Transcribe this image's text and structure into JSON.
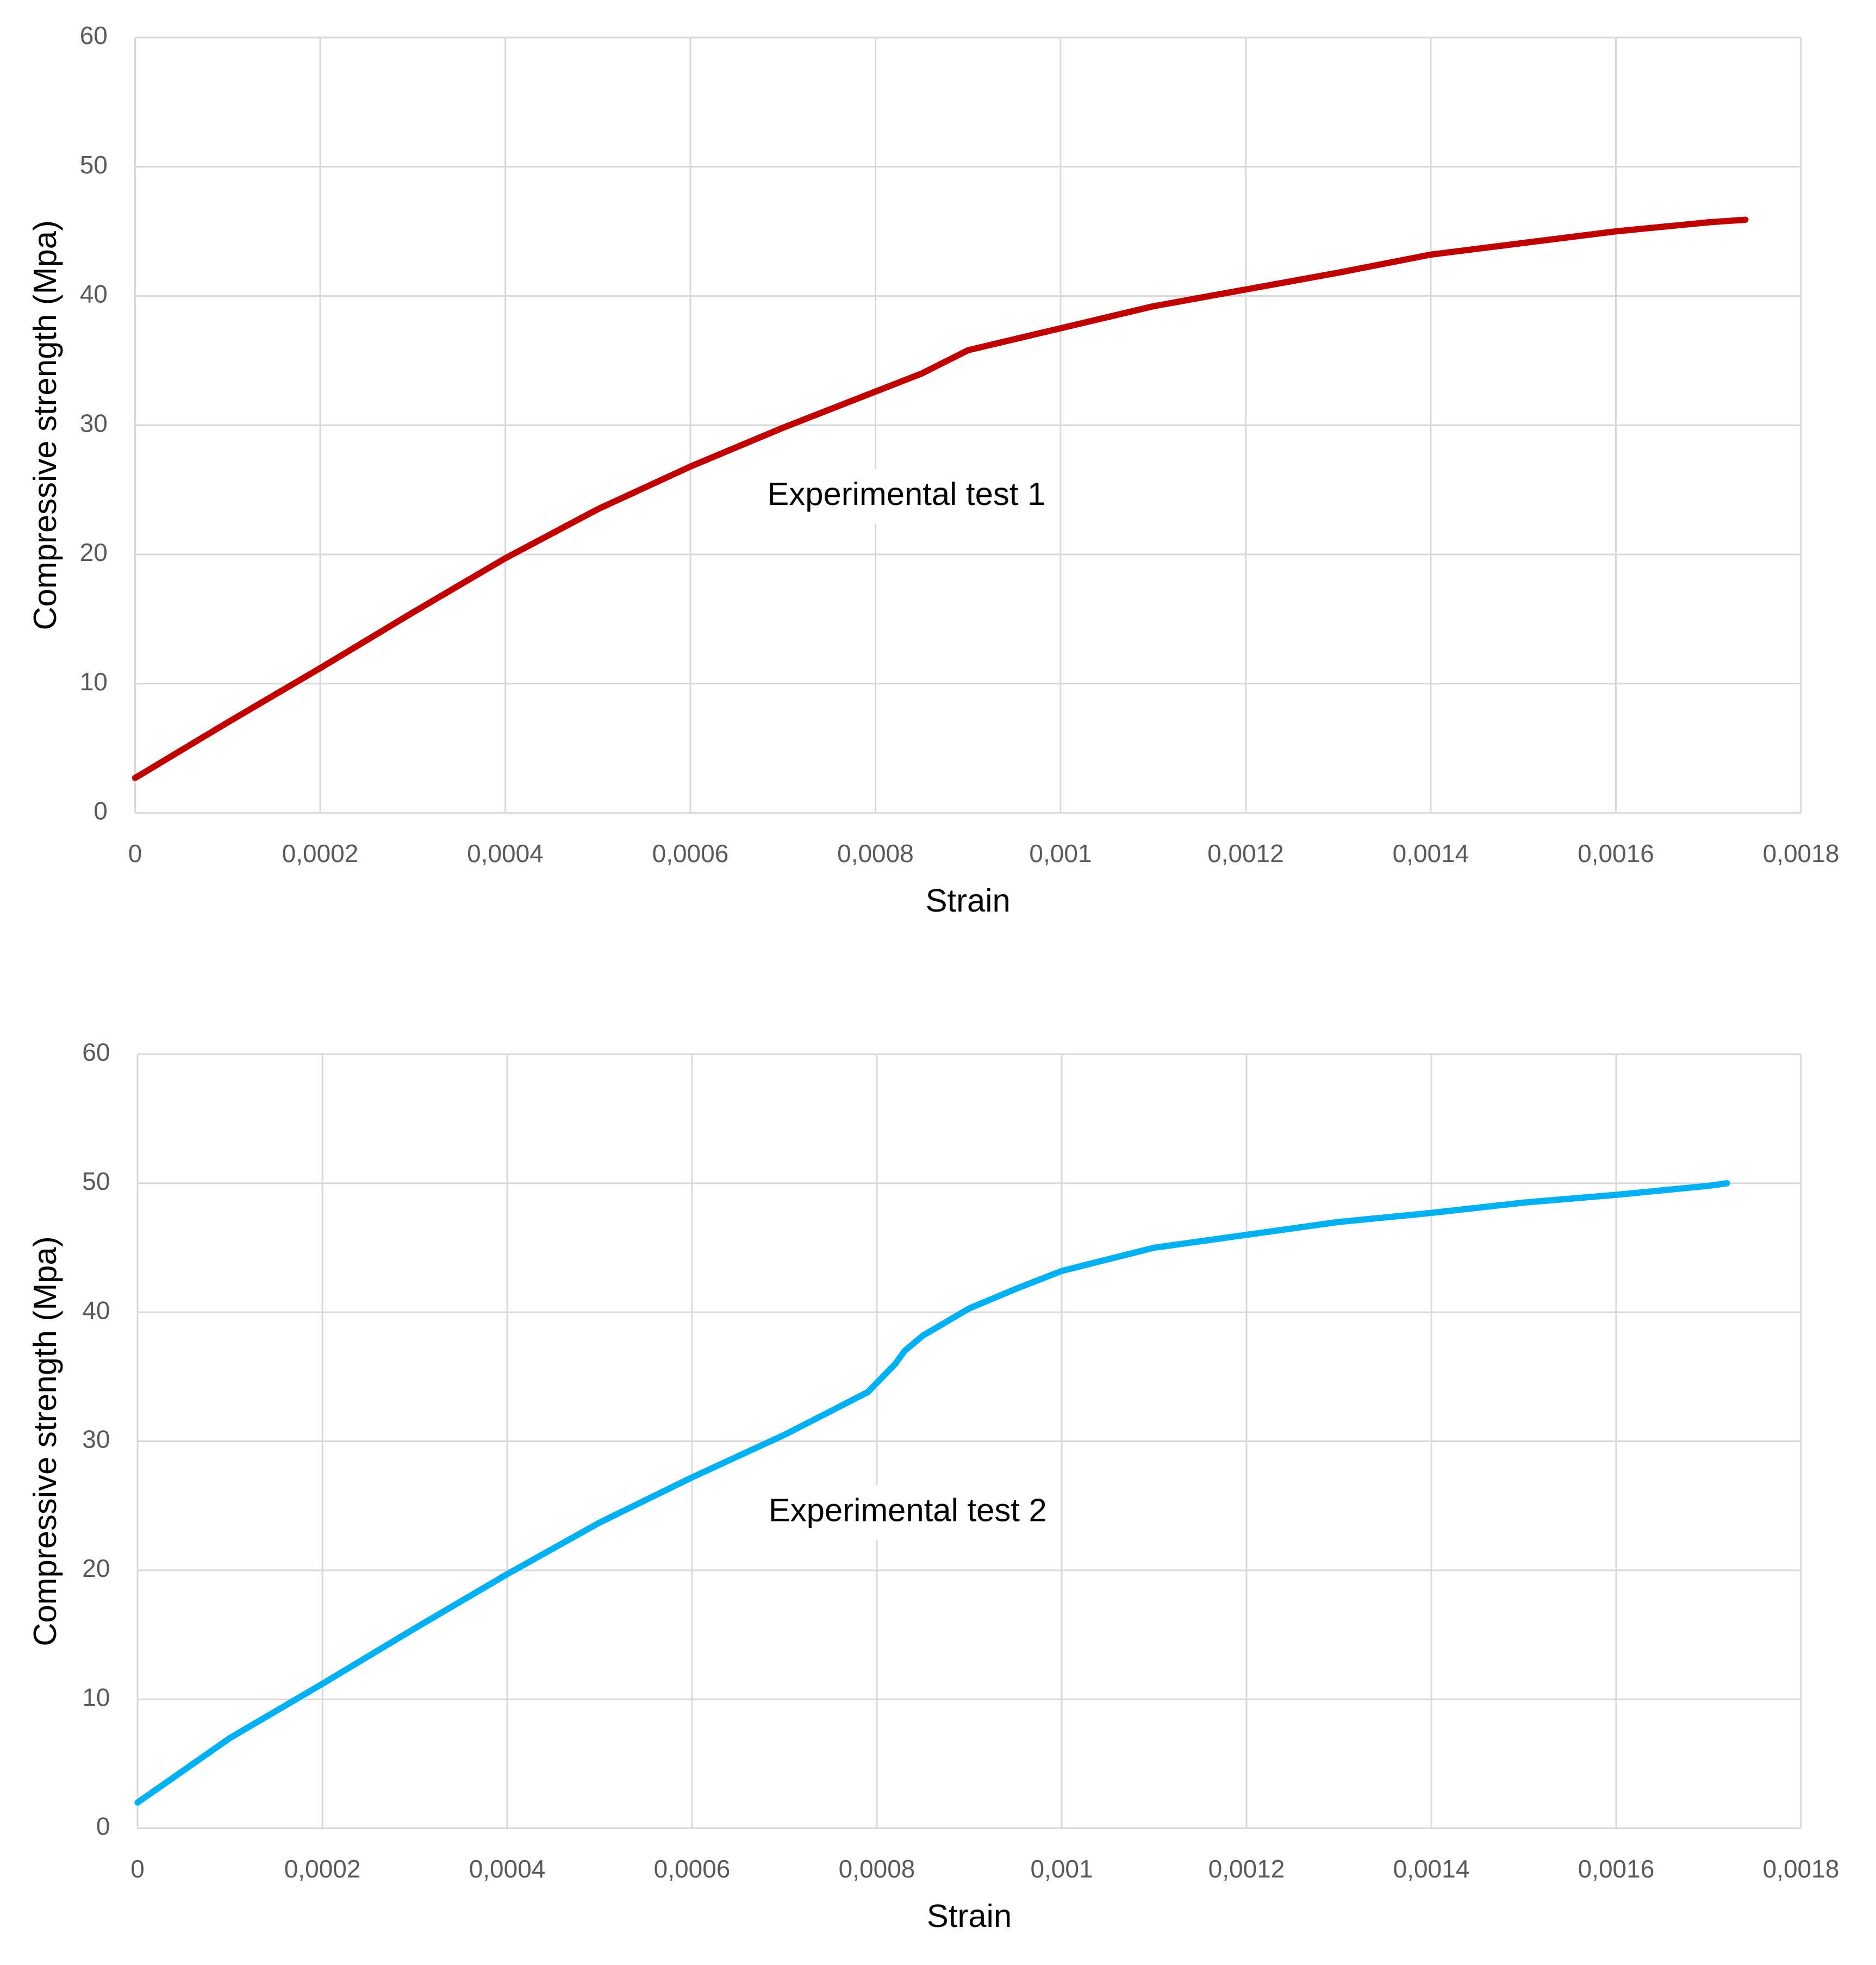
{
  "chart_data": [
    {
      "type": "line",
      "annotation": "Experimental test 1",
      "xlabel": "Strain",
      "ylabel": "Compressive strength (Mpa)",
      "color": "#c00000",
      "grid": true,
      "x": [
        0,
        0.0001,
        0.0002,
        0.0003,
        0.0004,
        0.0005,
        0.0006,
        0.0007,
        0.0008,
        0.00085,
        0.0009,
        0.001,
        0.0011,
        0.0012,
        0.0013,
        0.0014,
        0.0015,
        0.0016,
        0.0017,
        0.00174
      ],
      "values": [
        2.7,
        7,
        11.2,
        15.5,
        19.7,
        23.5,
        26.8,
        29.8,
        32.6,
        34,
        35.8,
        37.5,
        39.2,
        40.5,
        41.8,
        43.2,
        44.1,
        45,
        45.7,
        45.9
      ],
      "xlim": [
        0,
        0.0018
      ],
      "ylim": [
        0,
        60
      ],
      "xticks": [
        0,
        {
          "value": 0.0002,
          "label": "0,0002"
        },
        {
          "value": 0.0004,
          "label": "0,0004"
        },
        {
          "value": 0.0006,
          "label": "0,0006"
        },
        {
          "value": 0.0008,
          "label": "0,0008"
        },
        {
          "value": 0.001,
          "label": "0,001"
        },
        {
          "value": 0.0012,
          "label": "0,0012"
        },
        {
          "value": 0.0014,
          "label": "0,0014"
        },
        {
          "value": 0.0016,
          "label": "0,0016"
        },
        {
          "value": 0.0018,
          "label": "0,0018"
        }
      ],
      "yticks": [
        0,
        10,
        20,
        30,
        40,
        50,
        60
      ]
    },
    {
      "type": "line",
      "annotation": "Experimental test 2",
      "xlabel": "Strain",
      "ylabel": "Compressive strength (Mpa)",
      "color": "#00b0f0",
      "grid": true,
      "x": [
        0,
        5e-05,
        0.0001,
        0.0002,
        0.0003,
        0.0004,
        0.0005,
        0.0006,
        0.0007,
        0.00079,
        0.00082,
        0.00083,
        0.00085,
        0.0009,
        0.00095,
        0.001,
        0.0011,
        0.0012,
        0.0013,
        0.0014,
        0.0015,
        0.0016,
        0.0017,
        0.00172
      ],
      "values": [
        2,
        4.5,
        7,
        11.2,
        15.5,
        19.7,
        23.7,
        27.2,
        30.5,
        33.8,
        36,
        37,
        38.2,
        40.3,
        41.8,
        43.2,
        45,
        46,
        47,
        47.7,
        48.5,
        49.1,
        49.8,
        50
      ],
      "xlim": [
        0,
        0.0018
      ],
      "ylim": [
        0,
        60
      ],
      "xticks": [
        0,
        {
          "value": 0.0002,
          "label": "0,0002"
        },
        {
          "value": 0.0004,
          "label": "0,0004"
        },
        {
          "value": 0.0006,
          "label": "0,0006"
        },
        {
          "value": 0.0008,
          "label": "0,0008"
        },
        {
          "value": 0.001,
          "label": "0,001"
        },
        {
          "value": 0.0012,
          "label": "0,0012"
        },
        {
          "value": 0.0014,
          "label": "0,0014"
        },
        {
          "value": 0.0016,
          "label": "0,0016"
        },
        {
          "value": 0.0018,
          "label": "0,0018"
        }
      ],
      "yticks": [
        0,
        10,
        20,
        30,
        40,
        50,
        60
      ]
    }
  ]
}
